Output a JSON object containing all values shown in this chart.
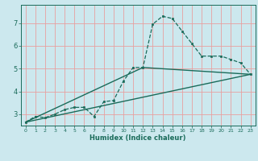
{
  "xlabel": "Humidex (Indice chaleur)",
  "ylabel": "",
  "background_color": "#cce8ee",
  "grid_color": "#e8a0a0",
  "line_color": "#1a6b5a",
  "xlim": [
    -0.5,
    23.5
  ],
  "ylim": [
    2.5,
    7.8
  ],
  "yticks": [
    3,
    4,
    5,
    6,
    7
  ],
  "xticks": [
    0,
    1,
    2,
    3,
    4,
    5,
    6,
    7,
    8,
    9,
    10,
    11,
    12,
    13,
    14,
    15,
    16,
    17,
    18,
    19,
    20,
    21,
    22,
    23
  ],
  "main_line_x": [
    0,
    1,
    2,
    3,
    4,
    5,
    6,
    7,
    8,
    9,
    10,
    11,
    12,
    13,
    14,
    15,
    16,
    17,
    18,
    19,
    20,
    21,
    22,
    23
  ],
  "main_line_y": [
    2.65,
    2.9,
    2.85,
    3.0,
    3.2,
    3.3,
    3.3,
    2.9,
    3.55,
    3.6,
    4.45,
    5.05,
    5.05,
    6.95,
    7.3,
    7.2,
    6.65,
    6.1,
    5.55,
    5.55,
    5.55,
    5.4,
    5.25,
    4.75
  ],
  "line2_x": [
    0,
    23
  ],
  "line2_y": [
    2.65,
    4.75
  ],
  "line3_x": [
    0,
    12,
    23
  ],
  "line3_y": [
    2.65,
    5.05,
    4.75
  ]
}
